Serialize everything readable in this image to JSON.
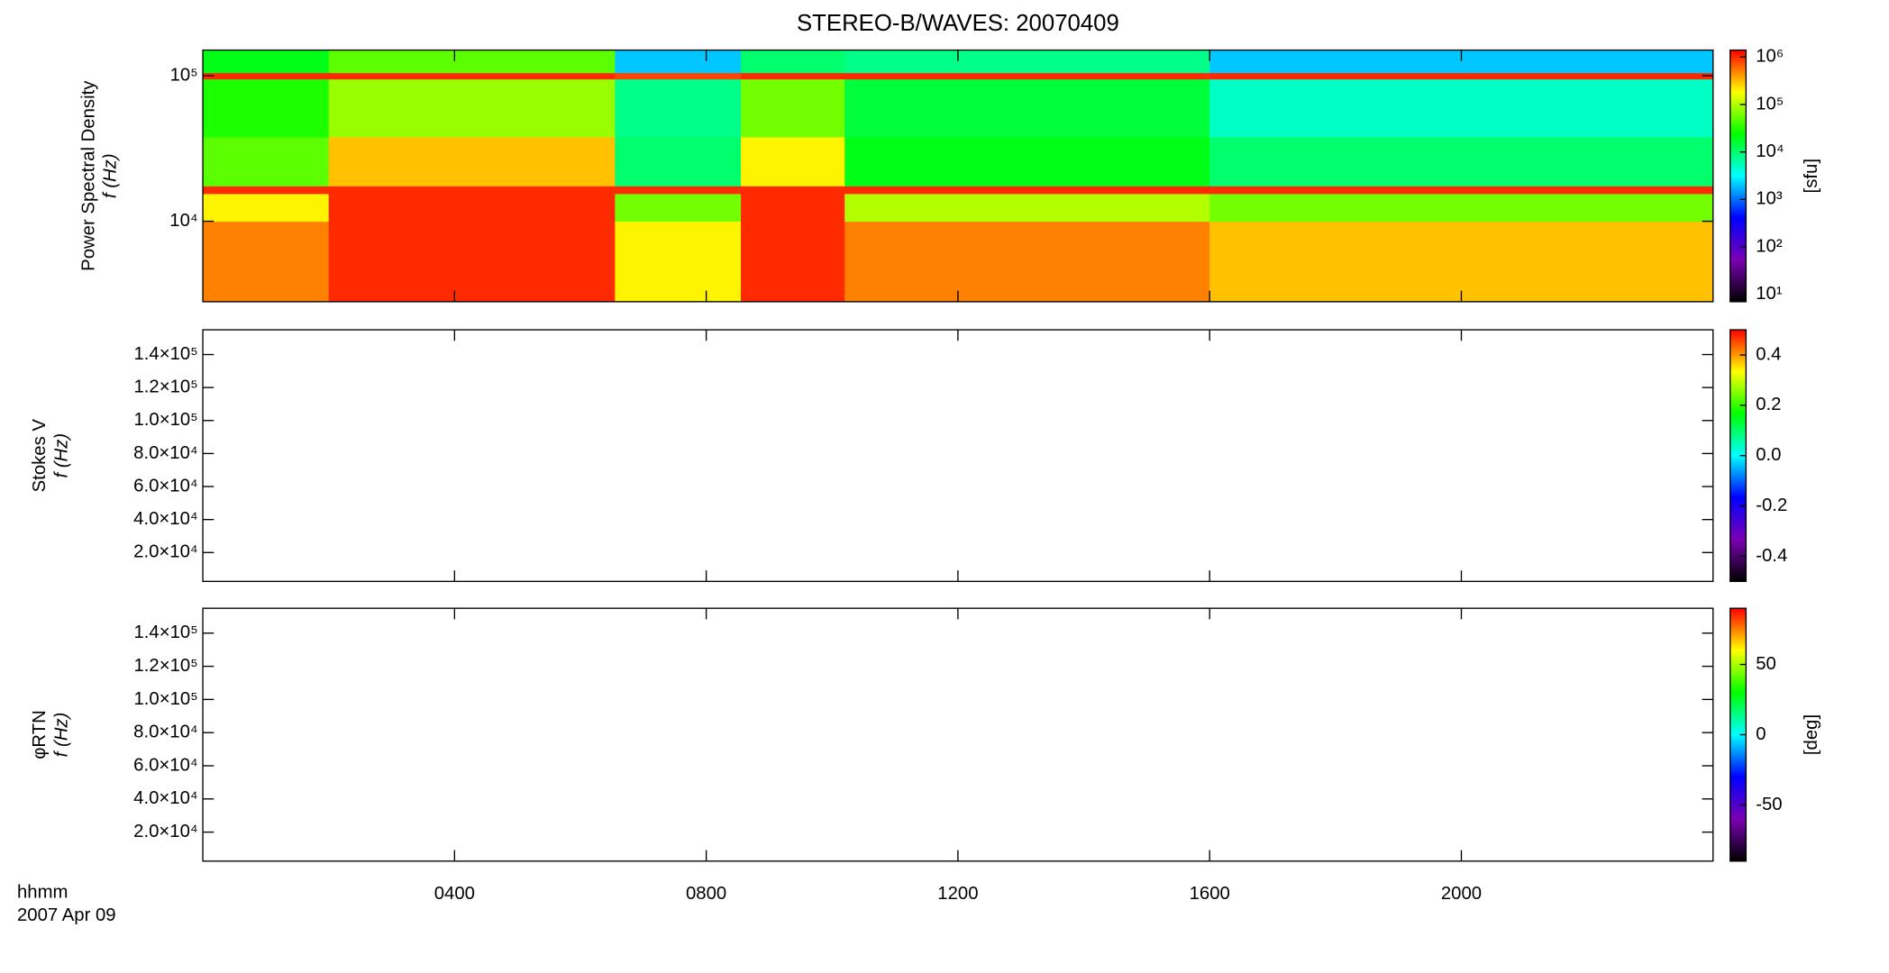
{
  "chart_data": [
    {
      "type": "heatmap",
      "title": "STEREO-B/WAVES: 20070409",
      "ylabel": [
        "Power Spectral Density",
        "f (Hz)"
      ],
      "xlim": [
        0,
        24
      ],
      "ylog": true,
      "ylim": [
        2800,
        150000
      ],
      "yticks": [
        {
          "value": 10000,
          "label": "10⁴"
        },
        {
          "value": 100000,
          "label": "10⁵"
        }
      ],
      "x_edges": [
        0,
        2,
        6.55,
        8.55,
        10.2,
        16,
        24
      ],
      "y_edges": [
        2800,
        10000,
        15500,
        17500,
        38000,
        95000,
        105000,
        150000
      ],
      "z": [
        [
          500000,
          200000,
          1000000,
          50000,
          30000,
          1000000,
          20000
        ],
        [
          1000000,
          1000000,
          1000000,
          300000,
          80000,
          1000000,
          50000
        ],
        [
          200000,
          60000,
          1000000,
          10000,
          8000,
          800000,
          2000
        ],
        [
          1000000,
          1000000,
          1000000,
          200000,
          60000,
          1000000,
          10000
        ],
        [
          500000,
          100000,
          1000000,
          20000,
          15000,
          1000000,
          8000
        ],
        [
          300000,
          60000,
          1000000,
          10000,
          5000,
          1000000,
          2000
        ]
      ],
      "colormap": [
        "#000000",
        "#7a00b4",
        "#0000ff",
        "#00ffff",
        "#00ff00",
        "#ffff00",
        "#ff0000"
      ],
      "clog": true,
      "clim": [
        7,
        1400000
      ],
      "cticks": [
        {
          "value": 10,
          "label": "10¹"
        },
        {
          "value": 100,
          "label": "10²"
        },
        {
          "value": 1000,
          "label": "10³"
        },
        {
          "value": 10000,
          "label": "10⁴"
        },
        {
          "value": 100000,
          "label": "10⁵"
        },
        {
          "value": 1000000,
          "label": "10⁶"
        }
      ],
      "clabel": "[sfu]"
    },
    {
      "type": "heatmap",
      "ylabel": [
        "Stokes V",
        "f (Hz)"
      ],
      "xlim": [
        0,
        24
      ],
      "ylim": [
        2500,
        155000
      ],
      "yticks": [
        {
          "value": 20000,
          "label": "2.0×10⁴"
        },
        {
          "value": 40000,
          "label": "4.0×10⁴"
        },
        {
          "value": 60000,
          "label": "6.0×10⁴"
        },
        {
          "value": 80000,
          "label": "8.0×10⁴"
        },
        {
          "value": 100000,
          "label": "1.0×10⁵"
        },
        {
          "value": 120000,
          "label": "1.2×10⁵"
        },
        {
          "value": 140000,
          "label": "1.4×10⁵"
        }
      ],
      "clim": [
        -0.5,
        0.5
      ],
      "cticks": [
        -0.4,
        -0.2,
        {
          "value": 0,
          "label": "0.0"
        },
        0.2,
        0.4
      ]
    },
    {
      "type": "heatmap",
      "ylabel": [
        "φRTN",
        "f (Hz)"
      ],
      "xlim": [
        0,
        24
      ],
      "ylim": [
        2500,
        155000
      ],
      "yticks": [
        {
          "value": 20000,
          "label": "2.0×10⁴"
        },
        {
          "value": 40000,
          "label": "4.0×10⁴"
        },
        {
          "value": 60000,
          "label": "6.0×10⁴"
        },
        {
          "value": 80000,
          "label": "8.0×10⁴"
        },
        {
          "value": 100000,
          "label": "1.0×10⁵"
        },
        {
          "value": 120000,
          "label": "1.2×10⁵"
        },
        {
          "value": 140000,
          "label": "1.4×10⁵"
        }
      ],
      "clim": [
        -90,
        90
      ],
      "cticks": [
        -50,
        0,
        50
      ],
      "clabel": "[deg]",
      "xticks": [
        {
          "value": 4,
          "label": "0400"
        },
        {
          "value": 8,
          "label": "0800"
        },
        {
          "value": 12,
          "label": "1200"
        },
        {
          "value": 16,
          "label": "1600"
        },
        {
          "value": 20,
          "label": "2000"
        }
      ],
      "x_title": [
        "hhmm",
        "2007 Apr 09"
      ]
    }
  ]
}
